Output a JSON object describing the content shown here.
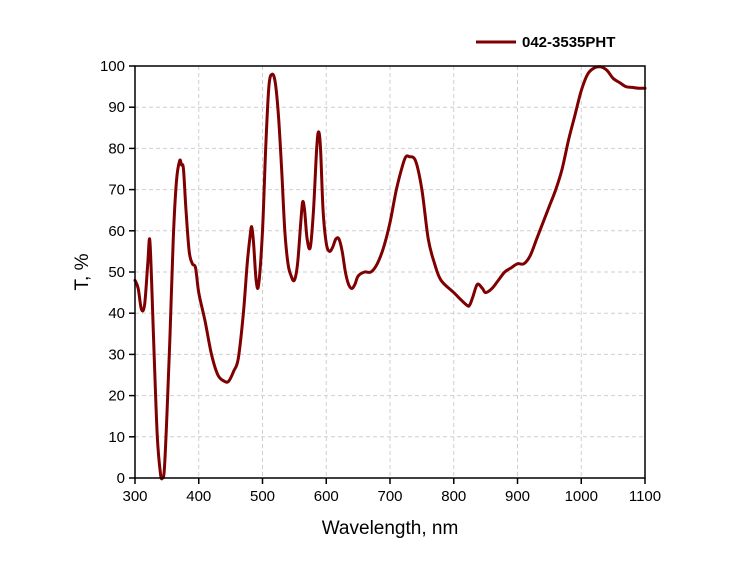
{
  "chart_data": {
    "type": "line",
    "title": "",
    "xlabel": "Wavelength, nm",
    "ylabel": "T, %",
    "xlim": [
      300,
      1100
    ],
    "ylim": [
      0,
      100
    ],
    "x_ticks": [
      300,
      400,
      500,
      600,
      700,
      800,
      900,
      1000,
      1100
    ],
    "y_ticks": [
      0,
      10,
      20,
      30,
      40,
      50,
      60,
      70,
      80,
      90,
      100
    ],
    "grid": true,
    "legend": "top-right",
    "colors": {
      "series": "#7f0000",
      "axis": "#000000",
      "grid": "#cfcfcf"
    },
    "series": [
      {
        "name": "042-3535PHT",
        "x": [
          300,
          305,
          310,
          315,
          320,
          323,
          326,
          330,
          335,
          340,
          343,
          346,
          350,
          355,
          360,
          365,
          370,
          373,
          376,
          380,
          385,
          390,
          395,
          400,
          410,
          420,
          430,
          440,
          447,
          455,
          462,
          470,
          476,
          480,
          483,
          486,
          490,
          494,
          500,
          505,
          510,
          515,
          520,
          525,
          530,
          535,
          540,
          545,
          550,
          555,
          560,
          563,
          566,
          570,
          575,
          580,
          585,
          588,
          591,
          595,
          600,
          605,
          610,
          615,
          620,
          625,
          630,
          635,
          640,
          645,
          650,
          660,
          670,
          680,
          690,
          700,
          710,
          720,
          725,
          730,
          740,
          750,
          760,
          770,
          780,
          800,
          820,
          825,
          830,
          837,
          845,
          850,
          860,
          870,
          880,
          890,
          900,
          910,
          920,
          930,
          940,
          950,
          960,
          970,
          980,
          990,
          1000,
          1010,
          1020,
          1030,
          1040,
          1050,
          1060,
          1070,
          1080,
          1090,
          1100
        ],
        "y": [
          48,
          46,
          41,
          42,
          52,
          58,
          48,
          30,
          10,
          1,
          0,
          2,
          15,
          35,
          58,
          72,
          77,
          76,
          75,
          65,
          55,
          52,
          51,
          45,
          38,
          30,
          25,
          23.5,
          23.5,
          26,
          29,
          40,
          52,
          58,
          61,
          57,
          48,
          47,
          60,
          80,
          95,
          98,
          96,
          88,
          75,
          60,
          52,
          49,
          48,
          52,
          62,
          67,
          65,
          58,
          56,
          65,
          80,
          84,
          80,
          65,
          57,
          55,
          56,
          58,
          58,
          55,
          50,
          47,
          46,
          47,
          49,
          50,
          50,
          52,
          56,
          62,
          70,
          76,
          78,
          78,
          77,
          70,
          58,
          52,
          48,
          45,
          42,
          42,
          44,
          47,
          46,
          45,
          46,
          48,
          50,
          51,
          52,
          52,
          54,
          58,
          62,
          66,
          70,
          75,
          82,
          88,
          94,
          98,
          99.5,
          99.8,
          99,
          97,
          96,
          95,
          94.8,
          94.6,
          94.6
        ]
      }
    ]
  }
}
